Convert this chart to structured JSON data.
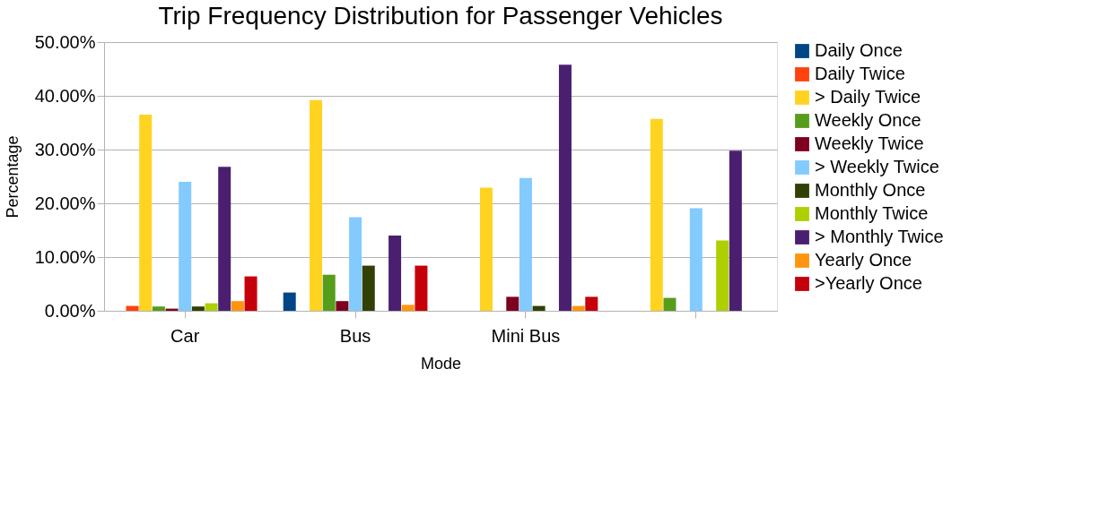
{
  "chart_data": {
    "type": "bar",
    "title": "Trip Frequency Distribution for Passenger Vehicles",
    "xlabel": "Mode",
    "ylabel": "Percentage",
    "categories": [
      "Car",
      "Bus",
      "Mini Bus",
      null
    ],
    "ylim": [
      0,
      50
    ],
    "yticks": [
      {
        "value": 0,
        "label": "0.00%"
      },
      {
        "value": 10,
        "label": "10.00%"
      },
      {
        "value": 20,
        "label": "20.00%"
      },
      {
        "value": 30,
        "label": "30.00%"
      },
      {
        "value": 40,
        "label": "40.00%"
      },
      {
        "value": 50,
        "label": "50.00%"
      }
    ],
    "grid": "y",
    "legend": "right",
    "series": [
      {
        "name": "Daily Once",
        "color": "#004586",
        "values": [
          0,
          3.4,
          0,
          0
        ]
      },
      {
        "name": "Daily Twice",
        "color": "#ff420e",
        "values": [
          0.9,
          0,
          0,
          0
        ]
      },
      {
        "name": "> Daily Twice",
        "color": "#ffd320",
        "values": [
          36.5,
          39.2,
          22.9,
          35.7
        ]
      },
      {
        "name": "Weekly Once",
        "color": "#579d1c",
        "values": [
          0.8,
          6.7,
          0,
          2.4
        ]
      },
      {
        "name": "Weekly Twice",
        "color": "#7e0021",
        "values": [
          0.4,
          1.8,
          2.6,
          0
        ]
      },
      {
        "name": "> Weekly Twice",
        "color": "#83caff",
        "values": [
          24.0,
          17.4,
          24.7,
          19.1
        ]
      },
      {
        "name": "Monthly Once",
        "color": "#314004",
        "values": [
          0.8,
          8.4,
          0.9,
          0
        ]
      },
      {
        "name": "Monthly Twice",
        "color": "#aecf00",
        "values": [
          1.4,
          0,
          0,
          13.1
        ]
      },
      {
        "name": "> Monthly Twice",
        "color": "#4b1f6f",
        "values": [
          26.8,
          14.0,
          45.8,
          29.8
        ]
      },
      {
        "name": "Yearly Once",
        "color": "#ff950e",
        "values": [
          1.8,
          1.1,
          0.9,
          0
        ]
      },
      {
        "name": ">Yearly Once",
        "color": "#c5000b",
        "values": [
          6.4,
          8.4,
          2.6,
          0
        ]
      }
    ]
  }
}
